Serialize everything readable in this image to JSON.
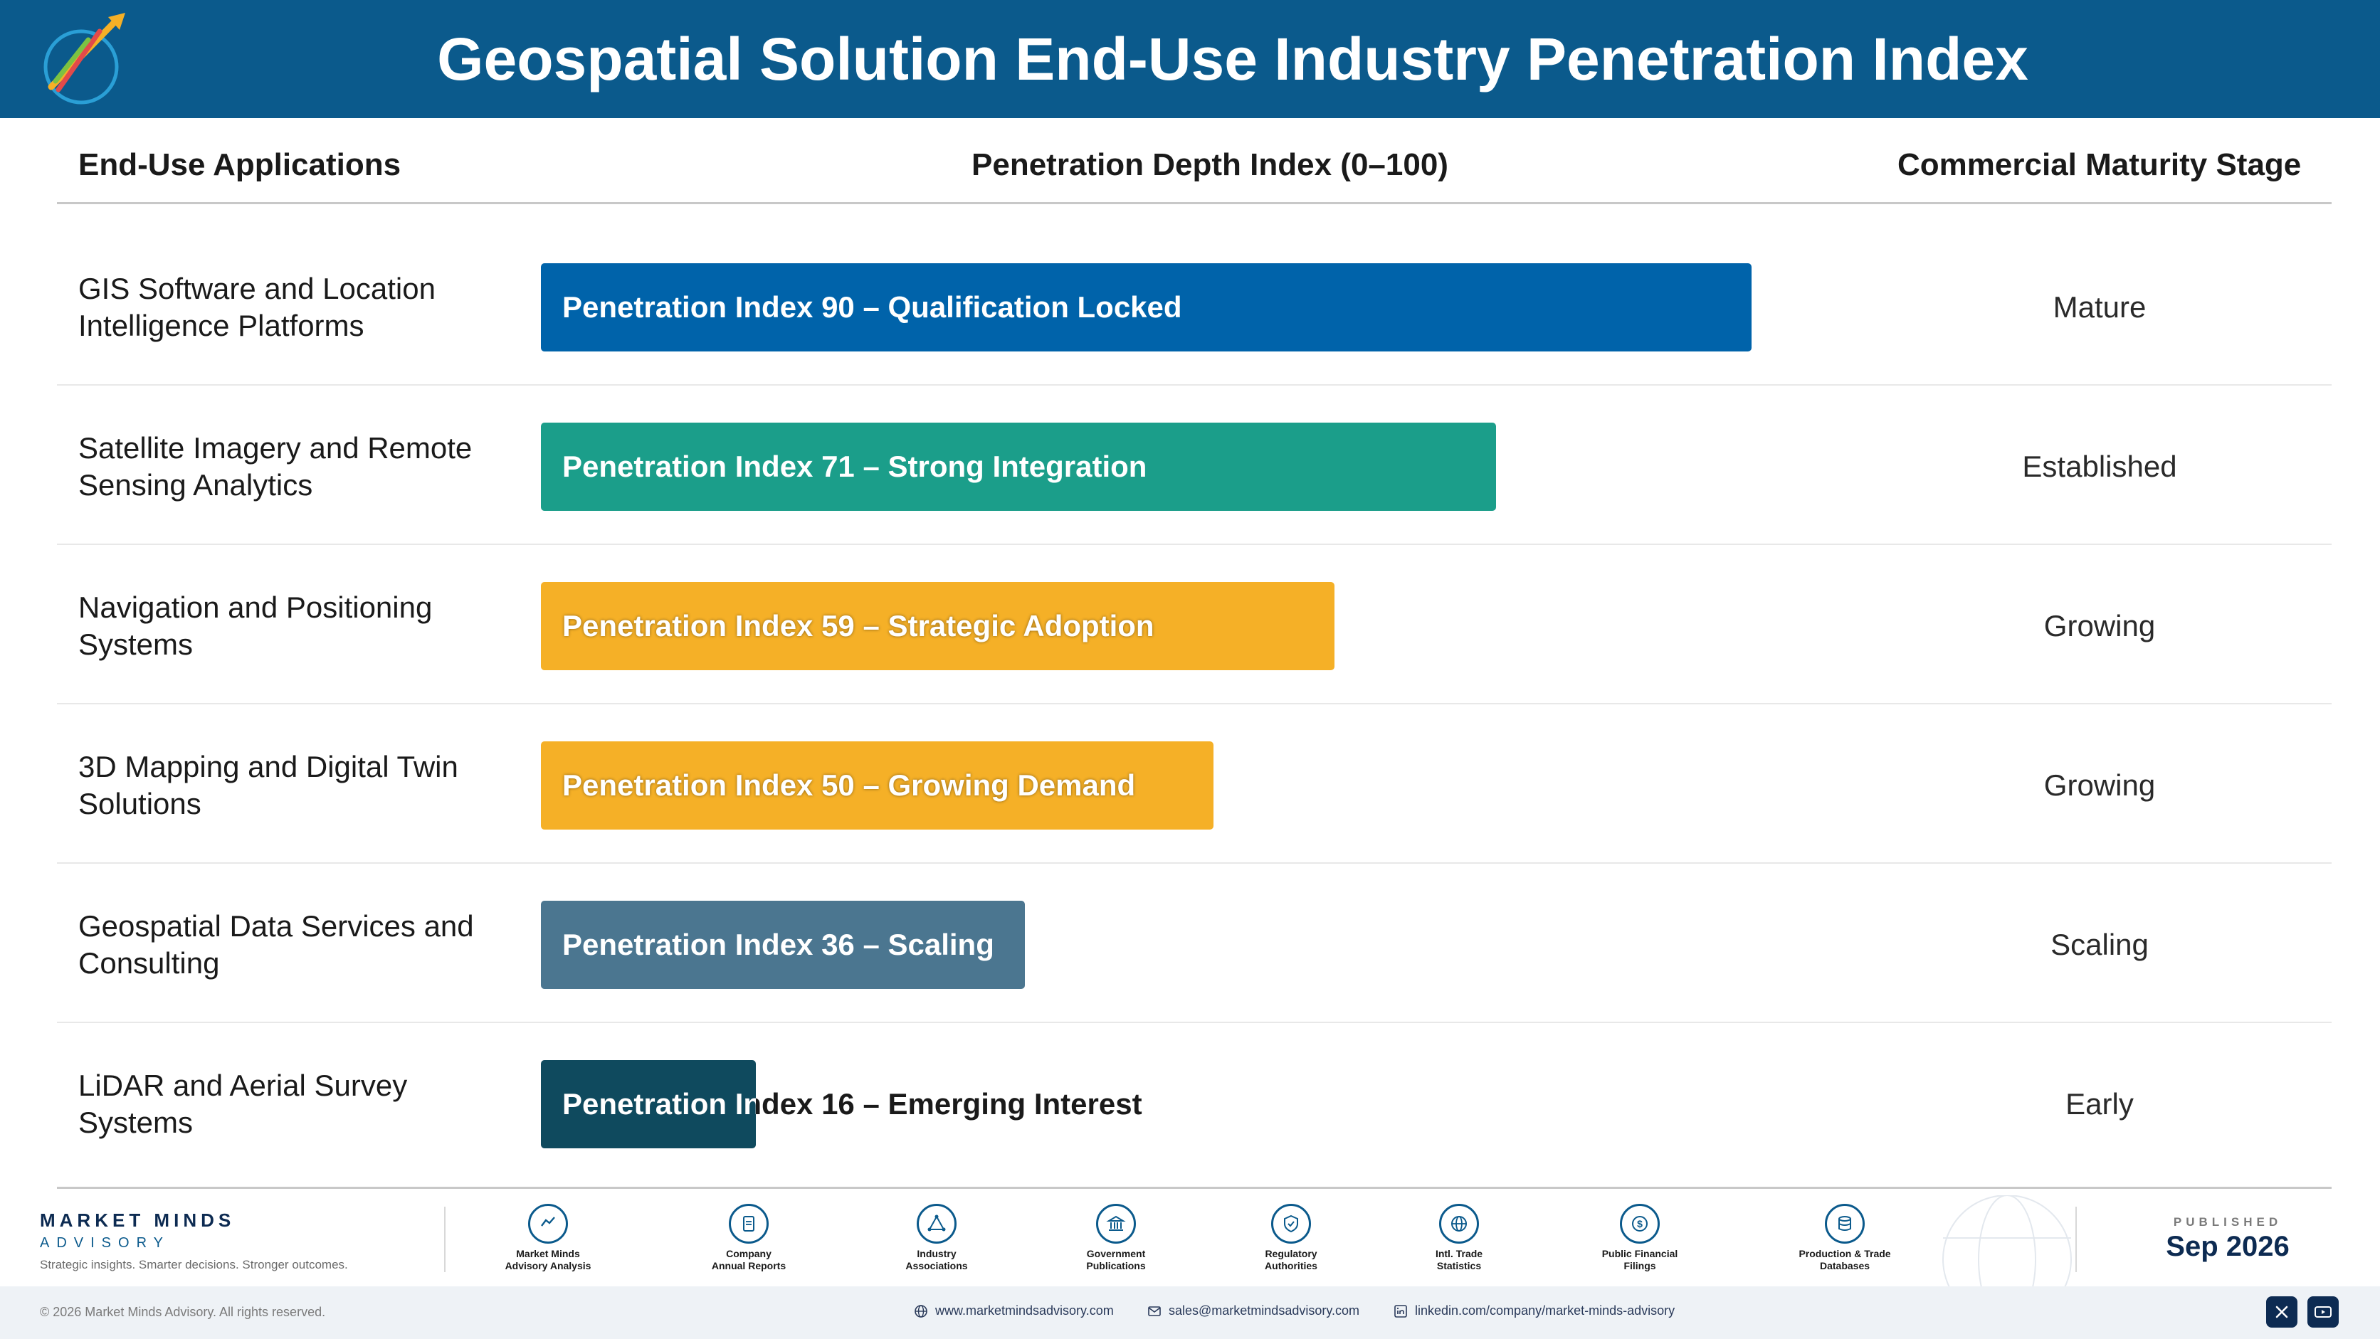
{
  "header": {
    "title": "Geospatial Solution End-Use Industry Penetration Index"
  },
  "columns": {
    "applications": "End-Use Applications",
    "depth": "Penetration Depth Index (0–100)",
    "stage": "Commercial Maturity Stage"
  },
  "chart_data": {
    "type": "bar",
    "orientation": "horizontal",
    "title": "Geospatial Solution End-Use Industry Penetration Index",
    "xlabel": "Penetration Depth Index (0–100)",
    "xlim": [
      0,
      100
    ],
    "categories": [
      "GIS Software and Location Intelligence Platforms",
      "Satellite Imagery and Remote Sensing Analytics",
      "Navigation and Positioning Systems",
      "3D Mapping and Digital Twin Solutions",
      "Geospatial Data Services and Consulting",
      "LiDAR and Aerial Survey Systems"
    ],
    "values": [
      90,
      71,
      59,
      50,
      36,
      16
    ],
    "bar_labels": [
      "Penetration Index 90 – Qualification Locked",
      "Penetration Index 71 – Strong Integration",
      "Penetration Index 59 – Strategic Adoption",
      "Penetration Index 50 – Growing Demand",
      "Penetration Index 36 – Scaling",
      "Penetration Index 16 – Emerging Interest"
    ],
    "stages": [
      "Mature",
      "Established",
      "Growing",
      "Growing",
      "Scaling",
      "Early"
    ],
    "colors": [
      "#0063aa",
      "#1b9e8a",
      "#f5b027",
      "#f5b027",
      "#4b7690",
      "#0f4a5e"
    ]
  },
  "footer": {
    "brand_name": "MARKET MINDS",
    "brand_sub": "ADVISORY",
    "brand_tagline": "Strategic insights. Smarter decisions. Stronger outcomes.",
    "sources": [
      {
        "line1": "Market Minds",
        "line2": "Advisory Analysis",
        "icon": "chart-icon"
      },
      {
        "line1": "Company",
        "line2": "Annual Reports",
        "icon": "document-icon"
      },
      {
        "line1": "Industry",
        "line2": "Associations",
        "icon": "network-icon"
      },
      {
        "line1": "Government",
        "line2": "Publications",
        "icon": "building-icon"
      },
      {
        "line1": "Regulatory",
        "line2": "Authorities",
        "icon": "shield-icon"
      },
      {
        "line1": "Intl. Trade",
        "line2": "Statistics",
        "icon": "globe-icon"
      },
      {
        "line1": "Public Financial",
        "line2": "Filings",
        "icon": "dollar-icon"
      },
      {
        "line1": "Production & Trade",
        "line2": "Databases",
        "icon": "database-icon"
      }
    ],
    "published_label": "PUBLISHED",
    "published_date": "Sep 2026",
    "copyright": "© 2026 Market Minds Advisory. All rights reserved.",
    "website": "www.marketmindsadvisory.com",
    "email": "sales@marketmindsadvisory.com",
    "linkedin": "linkedin.com/company/market-minds-advisory"
  }
}
